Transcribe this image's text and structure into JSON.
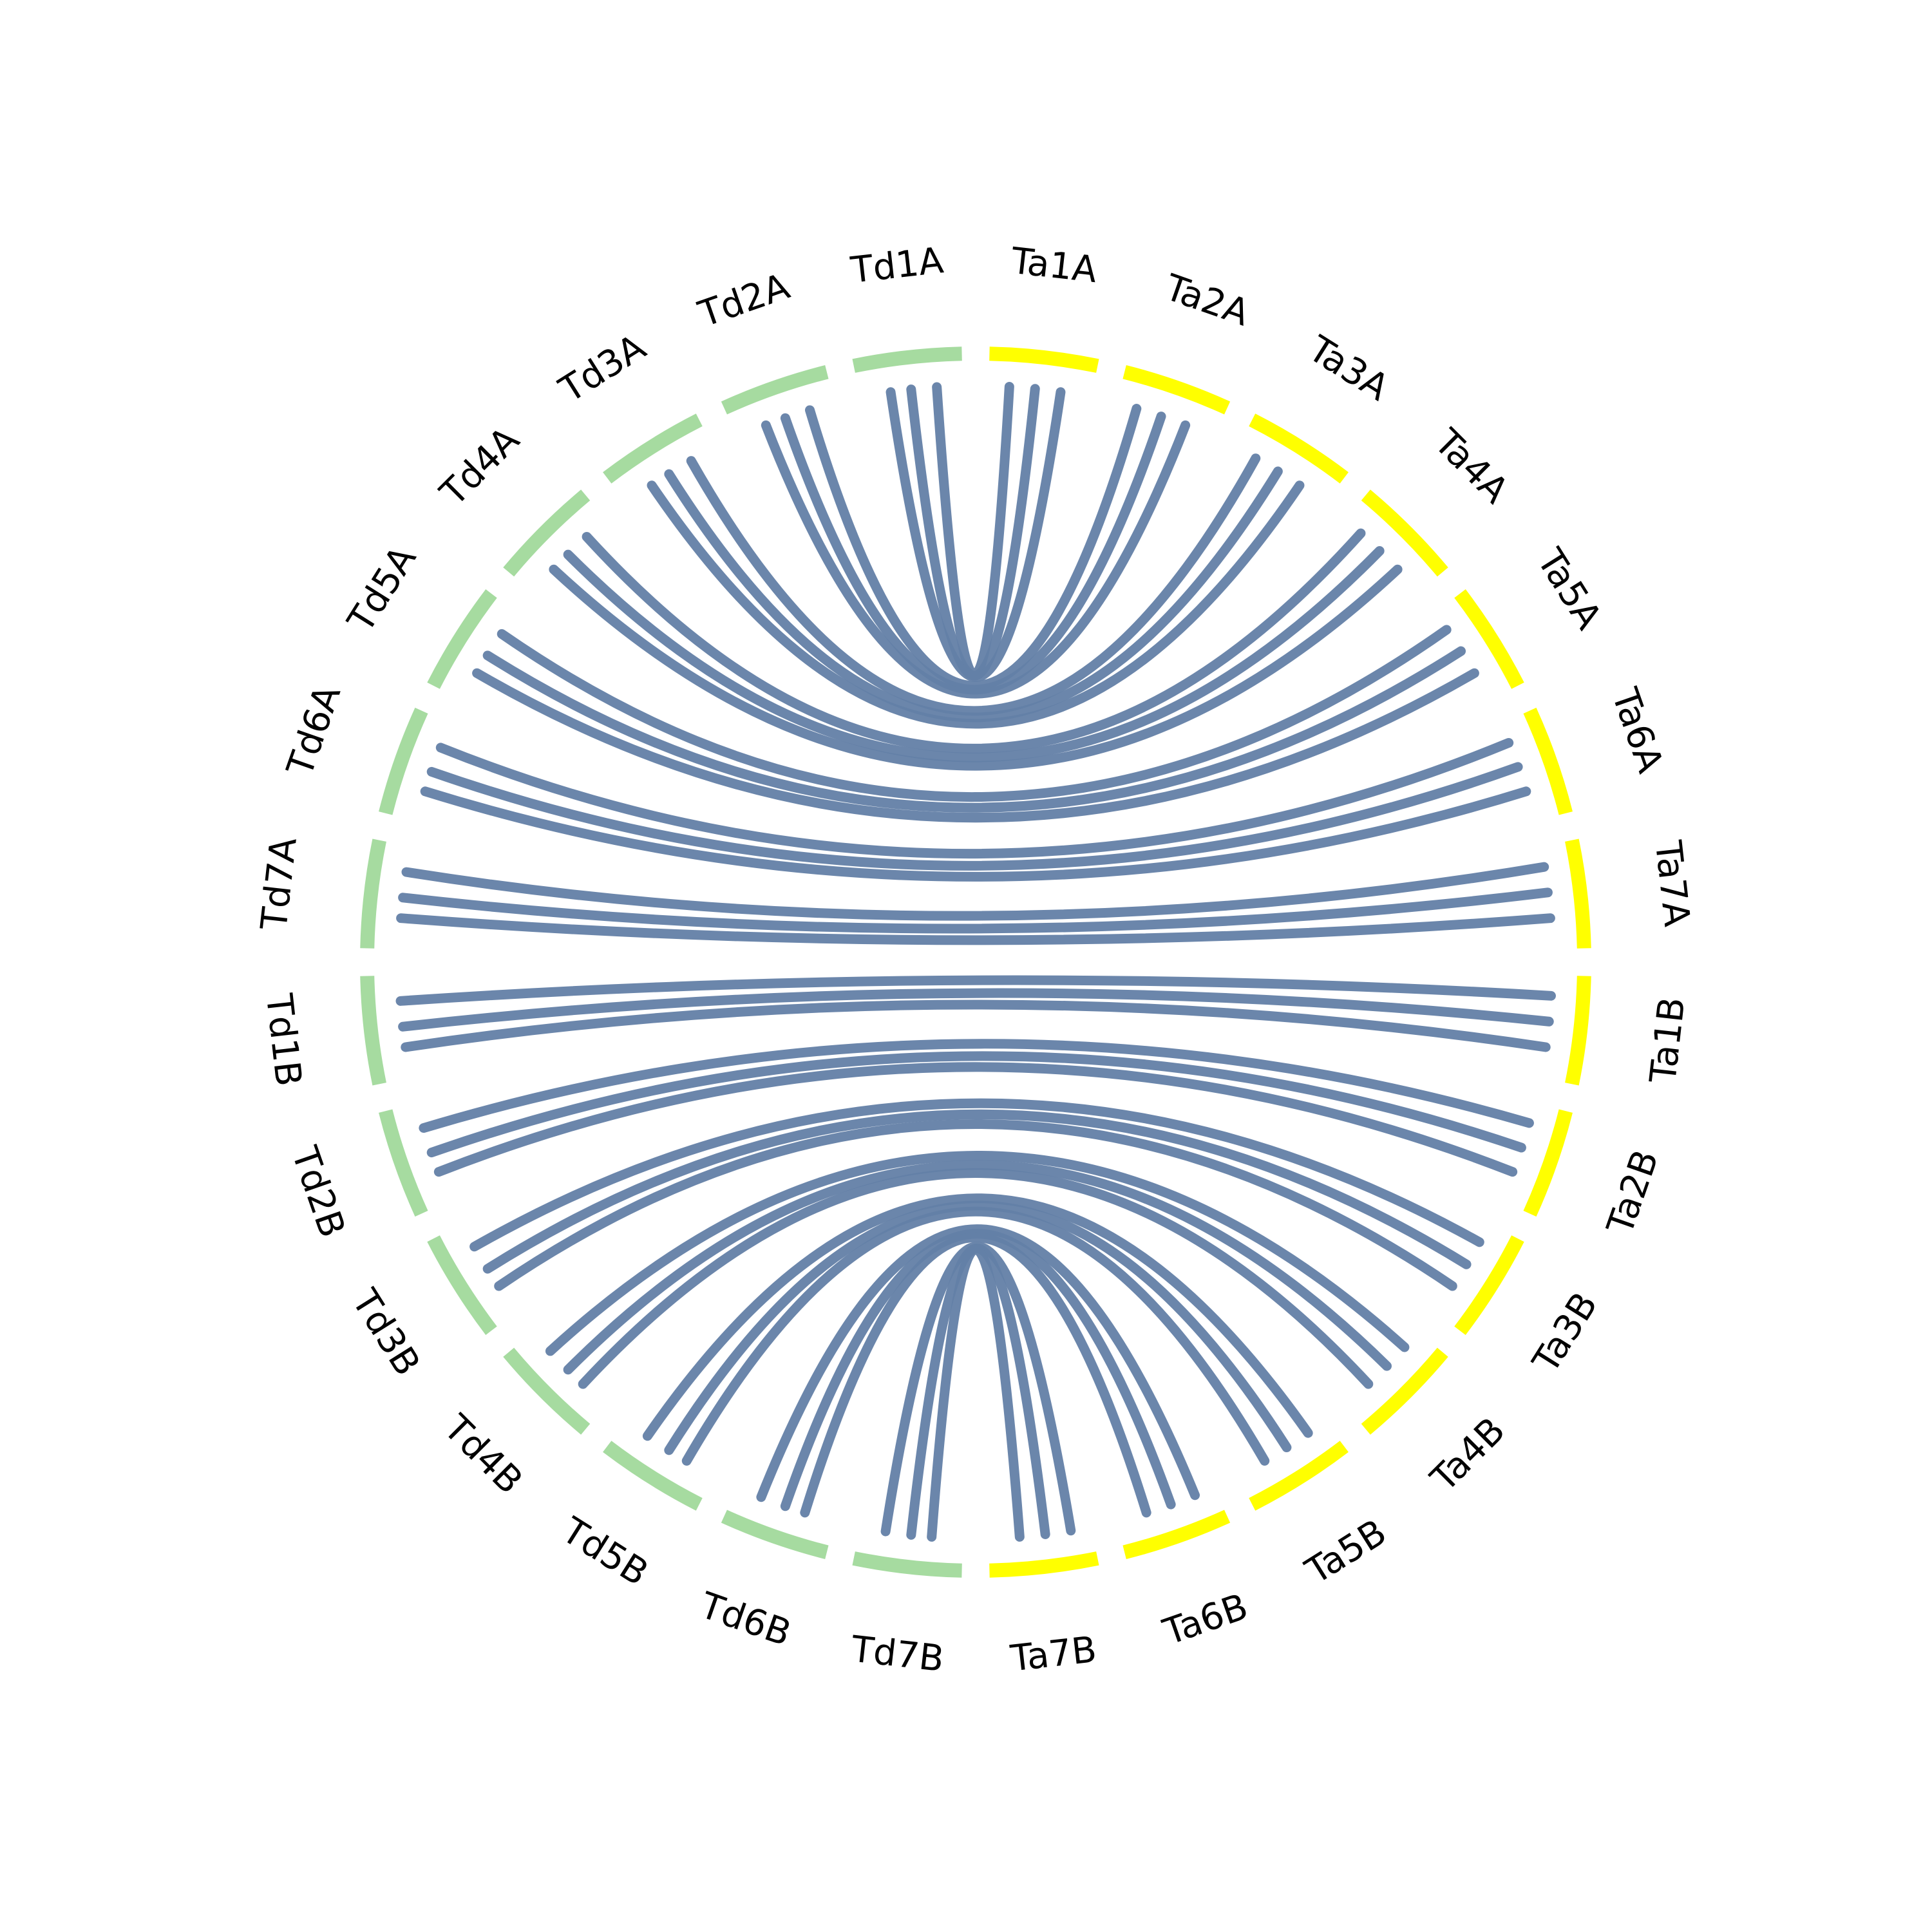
{
  "segments": [
    {
      "label": "Ta1A",
      "color": "#ffff00"
    },
    {
      "label": "Ta2A",
      "color": "#ffff00"
    },
    {
      "label": "Ta3A",
      "color": "#ffff00"
    },
    {
      "label": "Ta4A",
      "color": "#ffff00"
    },
    {
      "label": "Ta5A",
      "color": "#ffff00"
    },
    {
      "label": "Ta6A",
      "color": "#ffff00"
    },
    {
      "label": "Ta7A",
      "color": "#ffff00"
    },
    {
      "label": "Ta1B",
      "color": "#ffff00"
    },
    {
      "label": "Ta2B",
      "color": "#ffff00"
    },
    {
      "label": "Ta3B",
      "color": "#ffff00"
    },
    {
      "label": "Ta4B",
      "color": "#ffff00"
    },
    {
      "label": "Ta5B",
      "color": "#ffff00"
    },
    {
      "label": "Ta6B",
      "color": "#ffff00"
    },
    {
      "label": "Ta7B",
      "color": "#ffff00"
    },
    {
      "label": "Td7B",
      "color": "#a6dba0"
    },
    {
      "label": "Td6B",
      "color": "#a6dba0"
    },
    {
      "label": "Td5B",
      "color": "#a6dba0"
    },
    {
      "label": "Td4B",
      "color": "#a6dba0"
    },
    {
      "label": "Td3B",
      "color": "#a6dba0"
    },
    {
      "label": "Td2B",
      "color": "#a6dba0"
    },
    {
      "label": "Td1B",
      "color": "#a6dba0"
    },
    {
      "label": "Td7A",
      "color": "#a6dba0"
    },
    {
      "label": "Td6A",
      "color": "#a6dba0"
    },
    {
      "label": "Td5A",
      "color": "#a6dba0"
    },
    {
      "label": "Td4A",
      "color": "#a6dba0"
    },
    {
      "label": "Td3A",
      "color": "#a6dba0"
    },
    {
      "label": "Td2A",
      "color": "#a6dba0"
    },
    {
      "label": "Td1A",
      "color": "#a6dba0"
    }
  ]
}
